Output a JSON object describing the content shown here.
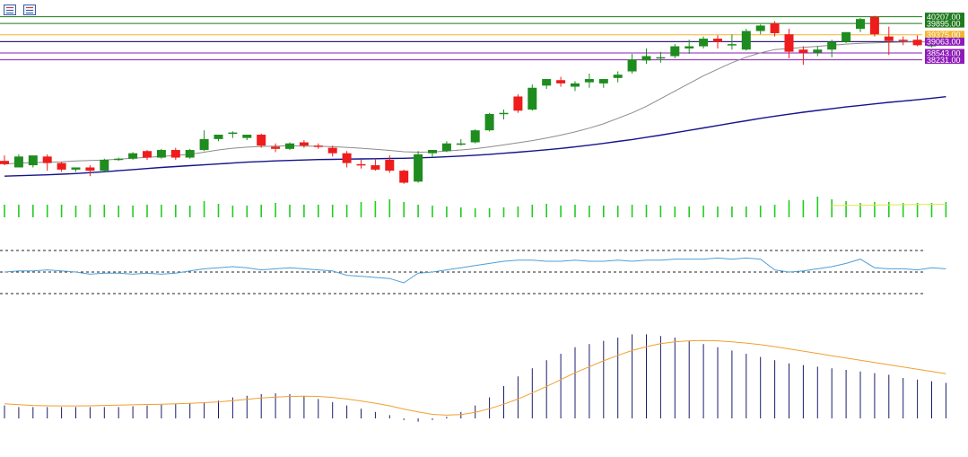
{
  "toolbar": {
    "icons": [
      "list-icon",
      "chart-properties-icon"
    ]
  },
  "colors": {
    "bull": "#1e8c1e",
    "bear": "#ee1c1c",
    "ma_fast": "#8c8c8c",
    "ma_slow": "#14148c",
    "rsi": "#4f9fd6",
    "macd_signal": "#f0a030",
    "macd_hist": "#1c1c6c",
    "volume": "#22cc22",
    "volume_ma": "#e6e646"
  },
  "price_levels": [
    {
      "label": "40207.00",
      "value": 40207,
      "color": "#1e7a1e",
      "text_color": "#ffffff"
    },
    {
      "label": "39895.00",
      "value": 39895,
      "color": "#1e7a1e",
      "text_color": "#ffffff"
    },
    {
      "label": "39375.00",
      "value": 39375,
      "color": "#f2b630",
      "text_color": "#ffffff"
    },
    {
      "label": "39063.00",
      "value": 39063,
      "color": "#8e1cb8",
      "text_color": "#ffffff"
    },
    {
      "label": "38543.00",
      "value": 38543,
      "color": "#8e1cb8",
      "text_color": "#ffffff"
    },
    {
      "label": "38231.00",
      "value": 38231,
      "color": "#8e1cb8",
      "text_color": "#ffffff"
    }
  ],
  "current_price": {
    "value": 39063,
    "color": "#1c1c6c"
  },
  "chart_data": [
    {
      "type": "candlestick",
      "price_range": [
        32250,
        40560
      ],
      "candles": [
        [
          33600,
          33850,
          33450,
          33400
        ],
        [
          33300,
          33900,
          33800,
          33700
        ],
        [
          33400,
          33500,
          33850,
          33300
        ],
        [
          33800,
          33900,
          33500,
          33150
        ],
        [
          33500,
          33550,
          33200,
          33100
        ],
        [
          33200,
          33300,
          33300,
          33100
        ],
        [
          33300,
          33400,
          33150,
          32900
        ],
        [
          33150,
          33700,
          33650,
          33100
        ],
        [
          33650,
          33750,
          33700,
          33600
        ],
        [
          33700,
          34000,
          33950,
          33650
        ],
        [
          34050,
          34100,
          33750,
          33650
        ],
        [
          33750,
          34150,
          34100,
          33700
        ],
        [
          34100,
          34200,
          33750,
          33650
        ],
        [
          33750,
          34150,
          34100,
          33700
        ],
        [
          34100,
          35000,
          34600,
          34050
        ],
        [
          34600,
          34800,
          34800,
          34500
        ],
        [
          34850,
          34950,
          34900,
          34650
        ],
        [
          34650,
          34800,
          34800,
          34550
        ],
        [
          34800,
          34850,
          34300,
          34200
        ],
        [
          34250,
          34400,
          34150,
          34000
        ],
        [
          34150,
          34450,
          34400,
          34100
        ],
        [
          34450,
          34550,
          34300,
          34200
        ],
        [
          34300,
          34400,
          34250,
          34150
        ],
        [
          34200,
          34300,
          33950,
          33800
        ],
        [
          33950,
          34050,
          33500,
          33300
        ],
        [
          33450,
          33650,
          33400,
          33250
        ],
        [
          33400,
          33700,
          33200,
          33150
        ],
        [
          33650,
          33850,
          33150,
          33050
        ],
        [
          33150,
          33200,
          32600,
          32550
        ],
        [
          32650,
          34050,
          33900,
          32600
        ],
        [
          33950,
          34100,
          34100,
          33750
        ],
        [
          34050,
          34500,
          34400,
          34000
        ],
        [
          34400,
          34600,
          34400,
          34300
        ],
        [
          34450,
          35050,
          35000,
          34400
        ],
        [
          35000,
          35800,
          35750,
          34950
        ],
        [
          35750,
          35950,
          35800,
          35500
        ],
        [
          36550,
          36650,
          35900,
          35800
        ],
        [
          35950,
          37100,
          36950,
          35900
        ],
        [
          37050,
          37300,
          37350,
          36900
        ],
        [
          37300,
          37450,
          37150,
          37000
        ],
        [
          37000,
          37250,
          37150,
          36800
        ],
        [
          37200,
          37600,
          37350,
          36950
        ],
        [
          37150,
          37350,
          37350,
          36950
        ],
        [
          37400,
          37700,
          37550,
          37200
        ],
        [
          37700,
          38500,
          38250,
          37600
        ],
        [
          38200,
          38750,
          38400,
          38050
        ],
        [
          38300,
          38600,
          38350,
          38100
        ],
        [
          38400,
          38950,
          38850,
          38300
        ],
        [
          38750,
          39150,
          38850,
          38500
        ],
        [
          38850,
          39300,
          39200,
          38750
        ],
        [
          39200,
          39350,
          39050,
          38750
        ],
        [
          38950,
          39400,
          38950,
          38700
        ],
        [
          38700,
          39650,
          39550,
          38650
        ],
        [
          39550,
          39850,
          39800,
          39400
        ],
        [
          39900,
          40000,
          39450,
          39300
        ],
        [
          39400,
          39650,
          38600,
          38300
        ],
        [
          38700,
          38850,
          38550,
          38000
        ],
        [
          38550,
          38850,
          38700,
          38400
        ],
        [
          38700,
          39150,
          39050,
          38350
        ],
        [
          39050,
          39350,
          39500,
          39000
        ],
        [
          39650,
          40150,
          40100,
          39500
        ],
        [
          40200,
          40250,
          39400,
          39300
        ],
        [
          39300,
          39750,
          39100,
          38450
        ],
        [
          39150,
          39300,
          39100,
          38900
        ],
        [
          39150,
          39350,
          38900,
          38850
        ],
        [
          38850,
          39300,
          39300,
          38800
        ],
        [
          39350,
          39450,
          39300,
          39300
        ]
      ],
      "ma_fast": [
        33450,
        33500,
        33520,
        33540,
        33560,
        33600,
        33620,
        33640,
        33680,
        33720,
        33760,
        33800,
        33850,
        33900,
        34000,
        34100,
        34180,
        34230,
        34260,
        34280,
        34290,
        34280,
        34270,
        34250,
        34220,
        34180,
        34130,
        34080,
        34020,
        34000,
        34010,
        34050,
        34100,
        34160,
        34240,
        34330,
        34430,
        34530,
        34650,
        34780,
        34930,
        35100,
        35300,
        35550,
        35800,
        36100,
        36450,
        36800,
        37150,
        37500,
        37800,
        38100,
        38350,
        38550,
        38700,
        38750,
        38800,
        38850,
        38900,
        38950,
        38990,
        39010,
        39030,
        39040,
        39050,
        39060,
        39070
      ],
      "ma_slow": [
        32900,
        32920,
        32940,
        32960,
        32990,
        33020,
        33060,
        33100,
        33150,
        33200,
        33250,
        33300,
        33340,
        33380,
        33420,
        33460,
        33500,
        33540,
        33570,
        33600,
        33620,
        33640,
        33660,
        33670,
        33680,
        33690,
        33700,
        33710,
        33720,
        33740,
        33760,
        33790,
        33820,
        33860,
        33900,
        33950,
        34000,
        34050,
        34110,
        34170,
        34240,
        34320,
        34400,
        34490,
        34580,
        34680,
        34780,
        34890,
        35000,
        35110,
        35220,
        35330,
        35440,
        35550,
        35650,
        35740,
        35830,
        35910,
        35990,
        36070,
        36140,
        36210,
        36280,
        36340,
        36400,
        36470,
        36540
      ]
    },
    {
      "type": "bar",
      "name": "volume",
      "values": [
        0.7,
        0.7,
        0.7,
        0.7,
        0.7,
        0.65,
        0.7,
        0.7,
        0.65,
        0.65,
        0.7,
        0.7,
        0.7,
        0.65,
        0.9,
        0.75,
        0.65,
        0.65,
        0.7,
        0.8,
        0.7,
        0.7,
        0.7,
        0.7,
        0.7,
        0.85,
        0.9,
        1.0,
        0.85,
        0.7,
        0.65,
        0.6,
        0.55,
        0.5,
        0.5,
        0.55,
        0.6,
        0.7,
        0.75,
        0.65,
        0.7,
        0.65,
        0.65,
        0.65,
        0.7,
        0.7,
        0.65,
        0.6,
        0.6,
        0.65,
        0.6,
        0.6,
        0.6,
        0.65,
        0.7,
        0.95,
        0.95,
        1.15,
        1.0,
        0.9,
        0.8,
        0.85,
        0.85,
        0.8,
        0.8,
        0.8,
        0.85
      ],
      "ma": [
        0.65,
        0.66,
        0.67,
        0.68,
        0.69,
        0.7,
        0.71,
        0.72,
        0.73
      ]
    },
    {
      "type": "line",
      "name": "rsi",
      "levels": [
        70,
        50,
        30
      ],
      "values": [
        50,
        51,
        51,
        52,
        51,
        50,
        48,
        49,
        49,
        48,
        49,
        48,
        49,
        51,
        53,
        54,
        55,
        54,
        52,
        53,
        54,
        53,
        52,
        51,
        47,
        46,
        45,
        44,
        40,
        49,
        50,
        52,
        54,
        56,
        58,
        60,
        61,
        61,
        60,
        60,
        61,
        60,
        60,
        61,
        60,
        61,
        61,
        62,
        62,
        62,
        63,
        62,
        63,
        62,
        52,
        50,
        51,
        53,
        55,
        58,
        62,
        54,
        53,
        53,
        52,
        54,
        53
      ]
    },
    {
      "type": "bar",
      "name": "macd",
      "values": [
        80,
        70,
        70,
        70,
        70,
        70,
        70,
        70,
        70,
        75,
        80,
        85,
        90,
        95,
        100,
        110,
        130,
        140,
        150,
        155,
        150,
        140,
        120,
        100,
        80,
        60,
        40,
        20,
        -10,
        -20,
        -10,
        10,
        40,
        80,
        130,
        200,
        260,
        310,
        360,
        400,
        440,
        460,
        480,
        500,
        520,
        520,
        510,
        500,
        480,
        460,
        440,
        420,
        400,
        380,
        360,
        340,
        330,
        320,
        310,
        300,
        290,
        280,
        270,
        250,
        240,
        230,
        220
      ],
      "signal": [
        90,
        85,
        80,
        78,
        77,
        77,
        78,
        80,
        82,
        84,
        86,
        88,
        90,
        93,
        97,
        102,
        110,
        118,
        126,
        132,
        136,
        138,
        136,
        130,
        120,
        108,
        94,
        78,
        58,
        40,
        25,
        20,
        24,
        38,
        60,
        88,
        120,
        158,
        198,
        240,
        282,
        320,
        356,
        390,
        420,
        444,
        462,
        474,
        480,
        482,
        480,
        474,
        466,
        456,
        444,
        430,
        416,
        402,
        388,
        374,
        360,
        346,
        332,
        318,
        304,
        290,
        276
      ]
    }
  ]
}
